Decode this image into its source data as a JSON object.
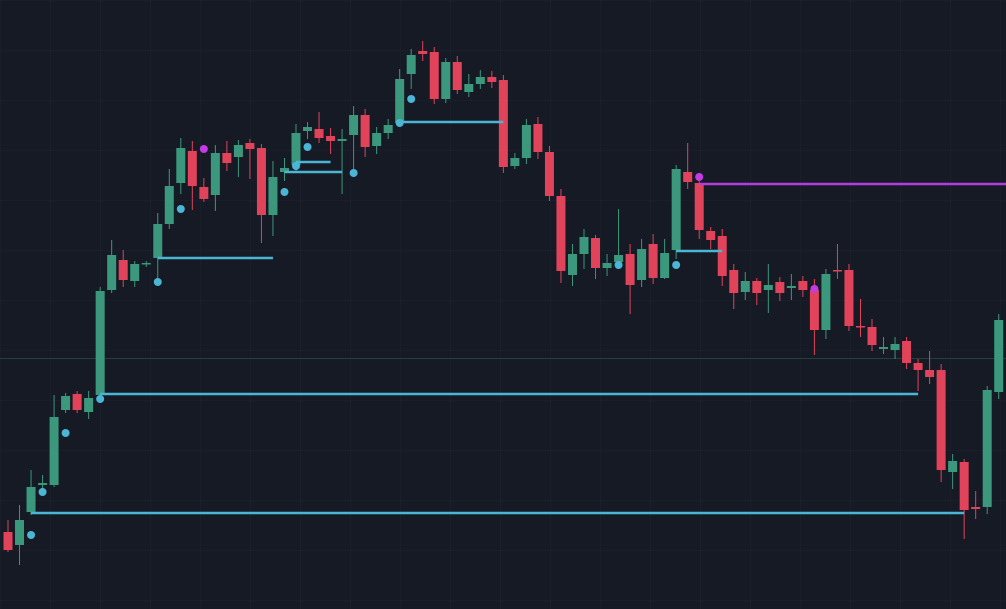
{
  "chart_data": {
    "type": "candlestick",
    "categories": [
      null,
      null,
      null,
      null,
      null,
      null,
      null,
      null,
      null,
      null,
      null,
      null,
      null,
      null,
      null,
      null,
      null,
      null,
      null,
      null,
      null,
      null,
      null,
      null,
      null,
      null,
      null,
      null,
      null,
      null,
      null,
      null,
      null,
      null,
      null,
      null,
      null,
      null,
      null,
      null,
      null,
      null,
      null,
      null,
      null,
      null,
      null,
      null,
      null,
      null,
      null,
      null,
      null,
      null,
      null,
      null,
      null,
      null,
      null,
      null,
      null,
      null,
      null,
      null,
      null,
      null,
      null,
      null,
      null,
      null,
      null,
      null,
      null,
      null,
      null,
      null,
      null,
      null,
      null,
      null,
      null,
      null,
      null,
      null,
      null,
      null,
      null
    ],
    "open": [
      77,
      64,
      97,
      124,
      124,
      199,
      215,
      197,
      214,
      319,
      349,
      328,
      345,
      351,
      385,
      426,
      458,
      422,
      414,
      456,
      452,
      466,
      461,
      394,
      437,
      444,
      478,
      480,
      473,
      468,
      474,
      494,
      463,
      476,
      486,
      535,
      558,
      557,
      510,
      547,
      517,
      525,
      532,
      529,
      443,
      451,
      485,
      457,
      413,
      334,
      355,
      371,
      341,
      347,
      355,
      329,
      365,
      331,
      359,
      437,
      426,
      378,
      373,
      339,
      317,
      328,
      319,
      327,
      321,
      328,
      319,
      279,
      339,
      339,
      283,
      282,
      260,
      259,
      268,
      246,
      239,
      239,
      137,
      147,
      102,
      102,
      217
    ],
    "high": [
      89,
      104,
      139,
      134,
      214,
      216,
      218,
      218,
      322,
      369,
      359,
      348,
      348,
      396,
      440,
      471,
      468,
      431,
      464,
      468,
      469,
      470,
      465,
      448,
      451,
      485,
      487,
      497,
      481,
      480,
      503,
      500,
      482,
      490,
      540,
      560,
      568,
      562,
      551,
      553,
      535,
      539,
      538,
      534,
      456,
      490,
      492,
      463,
      420,
      365,
      380,
      374,
      355,
      400,
      365,
      370,
      375,
      370,
      444,
      466,
      436,
      382,
      380,
      345,
      337,
      331,
      345,
      332,
      335,
      333,
      330,
      340,
      365,
      345,
      310,
      290,
      272,
      272,
      272,
      250,
      258,
      245,
      155,
      150,
      118,
      223,
      295
    ],
    "low": [
      57,
      44,
      94,
      120,
      122,
      196,
      196,
      190,
      212,
      316,
      322,
      322,
      342,
      327,
      380,
      415,
      399,
      407,
      398,
      438,
      432,
      430,
      366,
      373,
      428,
      437,
      470,
      466,
      455,
      415,
      440,
      452,
      455,
      470,
      484,
      520,
      548,
      505,
      506,
      515,
      512,
      520,
      521,
      436,
      440,
      445,
      450,
      408,
      326,
      323,
      340,
      330,
      333,
      340,
      295,
      322,
      325,
      330,
      350,
      420,
      370,
      360,
      323,
      300,
      309,
      304,
      296,
      308,
      309,
      312,
      254,
      270,
      330,
      278,
      272,
      258,
      255,
      250,
      240,
      218,
      225,
      127,
      120,
      70,
      90,
      95,
      210
    ],
    "close": [
      59,
      89,
      122,
      126,
      192,
      213,
      199,
      211,
      318,
      354,
      329,
      345,
      346,
      385,
      423,
      461,
      423,
      410,
      456,
      446,
      464,
      460,
      394,
      432,
      441,
      476,
      482,
      471,
      468,
      470,
      494,
      462,
      476,
      484,
      530,
      554,
      555,
      510,
      547,
      519,
      525,
      532,
      527,
      442,
      451,
      484,
      457,
      413,
      338,
      355,
      372,
      341,
      346,
      354,
      324,
      360,
      331,
      356,
      440,
      427,
      379,
      369,
      333,
      316,
      328,
      316,
      324,
      316,
      323,
      319,
      279,
      335,
      338,
      283,
      282,
      264,
      262,
      265,
      246,
      239,
      232,
      139,
      148,
      99,
      100,
      219,
      289
    ],
    "up_color": "#3b987d",
    "down_color": "#e0435a",
    "ylim": [
      0,
      609
    ],
    "levels": [
      {
        "value": 96,
        "start": 2,
        "end": 83,
        "color": "#4bb5d5"
      },
      {
        "value": 215,
        "start": 8,
        "end": 79,
        "color": "#4bb5d5"
      },
      {
        "value": 351,
        "start": 13,
        "end": 23,
        "color": "#4bb5d5"
      },
      {
        "value": 437,
        "start": 24,
        "end": 29,
        "color": "#4bb5d5"
      },
      {
        "value": 447,
        "start": 25,
        "end": 28,
        "color": "#4bb5d5"
      },
      {
        "value": 487,
        "start": 34,
        "end": 43,
        "color": "#4bb5d5"
      },
      {
        "value": 358,
        "start": 58,
        "end": 62,
        "color": "#4bb5d5"
      },
      {
        "value": 425,
        "start": 60,
        "end": 87,
        "color": "#b43be0"
      }
    ],
    "markers": [
      {
        "index": 2,
        "value": 74,
        "color": "#4bb5d5"
      },
      {
        "index": 3,
        "value": 117,
        "color": "#4bb5d5"
      },
      {
        "index": 5,
        "value": 176,
        "color": "#4bb5d5"
      },
      {
        "index": 8,
        "value": 210,
        "color": "#4bb5d5"
      },
      {
        "index": 13,
        "value": 327,
        "color": "#4bb5d5"
      },
      {
        "index": 15,
        "value": 400,
        "color": "#4bb5d5"
      },
      {
        "index": 24,
        "value": 417,
        "color": "#4bb5d5"
      },
      {
        "index": 25,
        "value": 443,
        "color": "#4bb5d5"
      },
      {
        "index": 26,
        "value": 462,
        "color": "#4bb5d5"
      },
      {
        "index": 30,
        "value": 436,
        "color": "#4bb5d5"
      },
      {
        "index": 34,
        "value": 486,
        "color": "#4bb5d5"
      },
      {
        "index": 35,
        "value": 510,
        "color": "#4bb5d5"
      },
      {
        "index": 53,
        "value": 344,
        "color": "#4bb5d5"
      },
      {
        "index": 58,
        "value": 344,
        "color": "#4bb5d5"
      },
      {
        "index": 17,
        "value": 460,
        "color": "#c63ae6"
      },
      {
        "index": 60,
        "value": 432,
        "color": "#c63ae6"
      },
      {
        "index": 70,
        "value": 320,
        "color": "#c63ae6"
      }
    ]
  }
}
